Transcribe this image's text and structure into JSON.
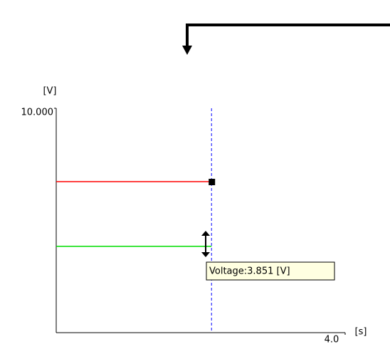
{
  "chart_data": {
    "type": "line",
    "y_label": "[V]",
    "x_label": "[s]",
    "xlim": [
      0,
      4.0
    ],
    "ylim": [
      0,
      10
    ],
    "xticks": [
      {
        "value": 4,
        "label": "4.0"
      }
    ],
    "yticks": [
      {
        "value": 10,
        "label": "10.000"
      }
    ],
    "x": [
      0,
      2.15
    ],
    "series": [
      {
        "color": "#ff0000",
        "values": [
          6.73,
          6.73
        ]
      },
      {
        "color": "#00dd00",
        "values": [
          3.851,
          3.851
        ]
      }
    ],
    "cursor_x": 2.15,
    "cursor_color": "#0000ff",
    "tooltip": "Voltage:3.851 [V]"
  }
}
